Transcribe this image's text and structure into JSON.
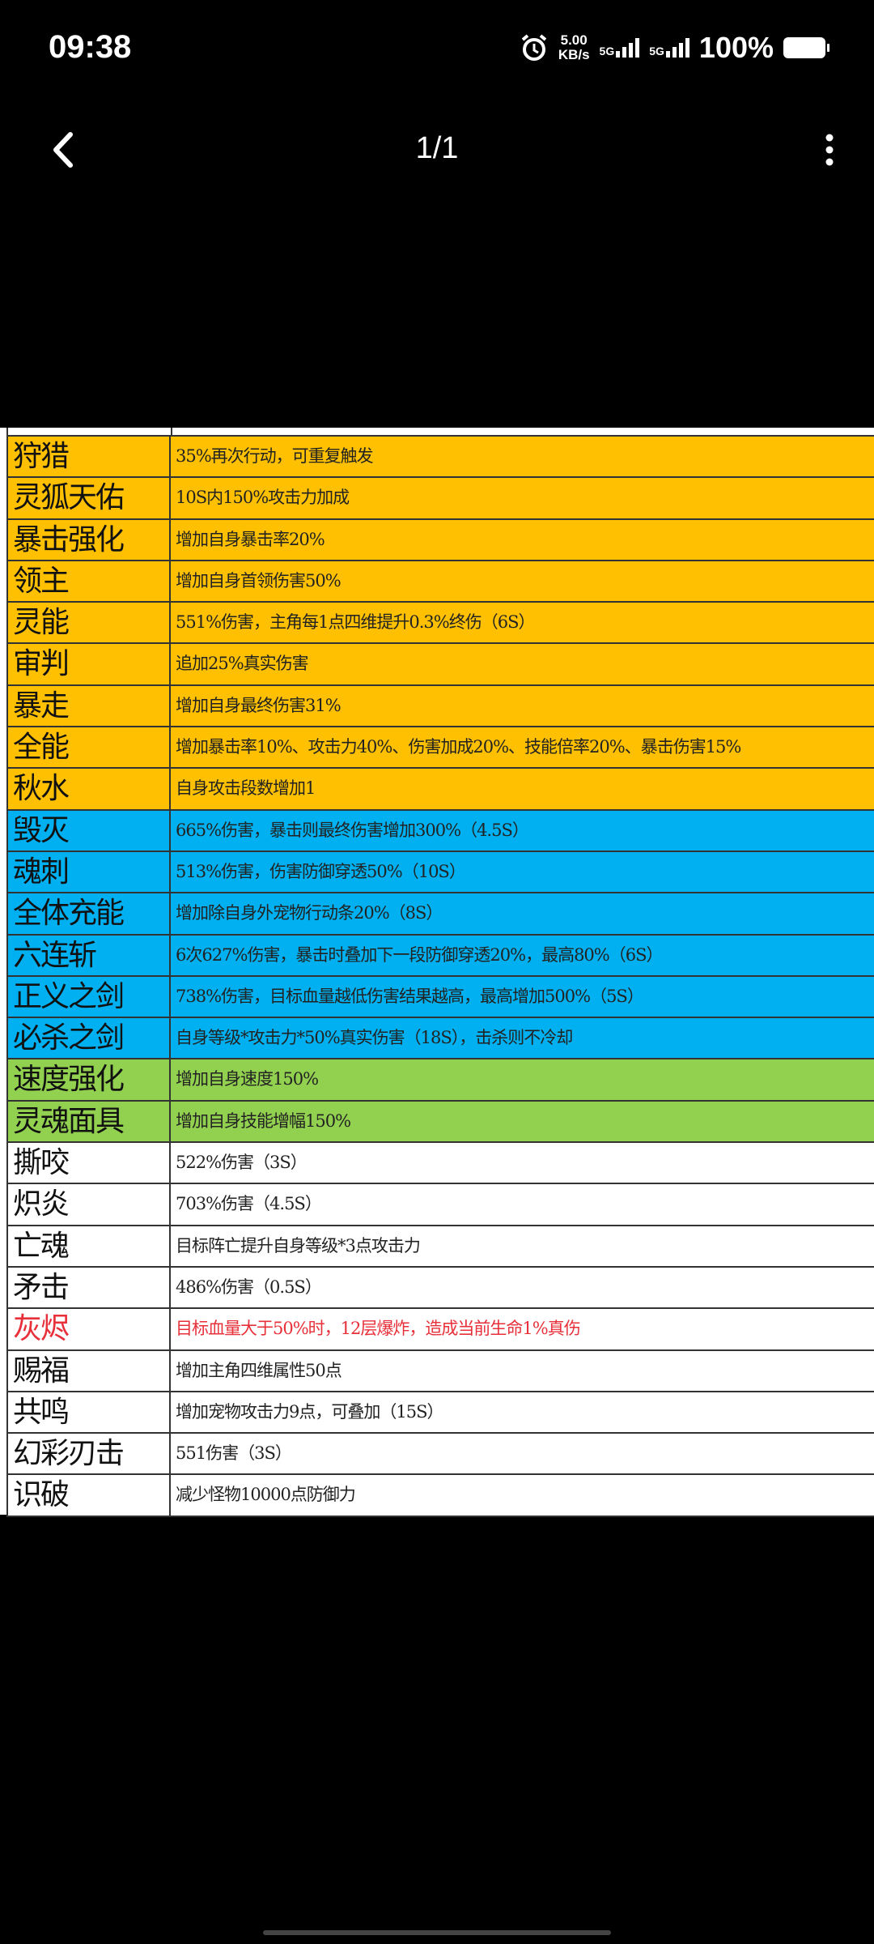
{
  "status_bar": {
    "time": "09:38",
    "speed_value": "5.00",
    "speed_unit": "KB/s",
    "net1": "5G",
    "net2": "5G",
    "battery": "100%"
  },
  "header": {
    "pager": "1/1",
    "back_icon": "chevron-left-icon",
    "more_icon": "kebab-menu-icon"
  },
  "colors": {
    "orange": "#fec000",
    "blue": "#00b0f0",
    "green": "#92d050",
    "white": "#ffffff",
    "red_text": "#e8303a"
  },
  "table": {
    "rows": [
      {
        "name": "狩猎",
        "desc": "35%再次行动，可重复触发",
        "color": "y"
      },
      {
        "name": "灵狐天佑",
        "desc": "10S内150%攻击力加成",
        "color": "y"
      },
      {
        "name": "暴击强化",
        "desc": "增加自身暴击率20%",
        "color": "y"
      },
      {
        "name": "领主",
        "desc": "增加自身首领伤害50%",
        "color": "y"
      },
      {
        "name": "灵能",
        "desc": "551%伤害，主角每1点四维提升0.3%终伤（6S）",
        "color": "y"
      },
      {
        "name": "审判",
        "desc": "追加25%真实伤害",
        "color": "y"
      },
      {
        "name": "暴走",
        "desc": "增加自身最终伤害31%",
        "color": "y"
      },
      {
        "name": "全能",
        "desc": "增加暴击率10%、攻击力40%、伤害加成20%、技能倍率20%、暴击伤害15%",
        "color": "y"
      },
      {
        "name": "秋水",
        "desc": "自身攻击段数增加1",
        "color": "y"
      },
      {
        "name": "毁灭",
        "desc": "665%伤害，暴击则最终伤害增加300%（4.5S）",
        "color": "b"
      },
      {
        "name": "魂刺",
        "desc": "513%伤害，伤害防御穿透50%（10S）",
        "color": "b"
      },
      {
        "name": "全体充能",
        "desc": "增加除自身外宠物行动条20%（8S）",
        "color": "b"
      },
      {
        "name": "六连斩",
        "desc": "6次627%伤害，暴击时叠加下一段防御穿透20%，最高80%（6S）",
        "color": "b"
      },
      {
        "name": "正义之剑",
        "desc": "738%伤害，目标血量越低伤害结果越高，最高增加500%（5S）",
        "color": "b"
      },
      {
        "name": "必杀之剑",
        "desc": "自身等级*攻击力*50%真实伤害（18S），击杀则不冷却",
        "color": "b"
      },
      {
        "name": "速度强化",
        "desc": "增加自身速度150%",
        "color": "g"
      },
      {
        "name": "灵魂面具",
        "desc": "增加自身技能增幅150%",
        "color": "g"
      },
      {
        "name": "撕咬",
        "desc": "522%伤害（3S）",
        "color": "w"
      },
      {
        "name": "炽炎",
        "desc": "703%伤害（4.5S）",
        "color": "w"
      },
      {
        "name": "亡魂",
        "desc": "目标阵亡提升自身等级*3点攻击力",
        "color": "w"
      },
      {
        "name": "矛击",
        "desc": "486%伤害（0.5S）",
        "color": "w"
      },
      {
        "name": "灰烬",
        "desc": "目标血量大于50%时，12层爆炸，造成当前生命1%真伤",
        "color": "w",
        "red": true
      },
      {
        "name": "赐福",
        "desc": "增加主角四维属性50点",
        "color": "w"
      },
      {
        "name": "共鸣",
        "desc": "增加宠物攻击力9点，可叠加（15S）",
        "color": "w"
      },
      {
        "name": "幻彩刃击",
        "desc": "551伤害（3S）",
        "color": "w"
      },
      {
        "name": "识破",
        "desc": "减少怪物10000点防御力",
        "color": "w"
      }
    ]
  }
}
